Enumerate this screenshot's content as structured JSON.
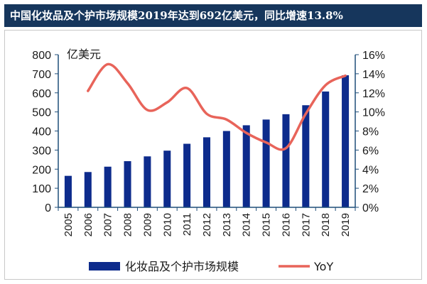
{
  "header": {
    "title": "中国化妆品及个护市场规模2019年达到692亿美元，同比增速13.8%"
  },
  "chart_data": {
    "type": "bar",
    "title": "中国化妆品及个护市场规模2019年达到692亿美元，同比增速13.8%",
    "categories": [
      "2005",
      "2006",
      "2007",
      "2008",
      "2009",
      "2010",
      "2011",
      "2012",
      "2013",
      "2014",
      "2015",
      "2016",
      "2017",
      "2018",
      "2019"
    ],
    "series": [
      {
        "name": "化妆品及个护市场规模",
        "type": "bar",
        "axis": "left",
        "color": "#0d2b8c",
        "values": [
          165,
          185,
          213,
          242,
          267,
          297,
          333,
          367,
          400,
          430,
          460,
          488,
          535,
          607,
          692
        ]
      },
      {
        "name": "YoY",
        "type": "line",
        "axis": "right",
        "color": "#e8645a",
        "values": [
          null,
          12.2,
          15.0,
          13.0,
          10.2,
          11.0,
          12.5,
          9.8,
          9.2,
          7.8,
          6.8,
          6.2,
          9.8,
          12.8,
          13.8
        ]
      }
    ],
    "ylabel": "亿美元",
    "y_left": {
      "min": 0,
      "max": 800,
      "ticks": [
        0,
        100,
        200,
        300,
        400,
        500,
        600,
        700,
        800
      ],
      "tick_labels": [
        "0",
        "100",
        "200",
        "300",
        "400",
        "500",
        "600",
        "700",
        "800"
      ]
    },
    "y_right": {
      "min": 0,
      "max": 16,
      "ticks": [
        0,
        2,
        4,
        6,
        8,
        10,
        12,
        14,
        16
      ],
      "tick_labels": [
        "0%",
        "2%",
        "4%",
        "6%",
        "8%",
        "10%",
        "12%",
        "14%",
        "16%"
      ]
    },
    "axis_color": "#1f4e79",
    "grid": false,
    "legend": {
      "placement": "bottom",
      "items": [
        {
          "label": "化妆品及个护市场规模",
          "kind": "bar",
          "color": "#0d2b8c"
        },
        {
          "label": "YoY",
          "kind": "line",
          "color": "#e8645a"
        }
      ]
    }
  }
}
